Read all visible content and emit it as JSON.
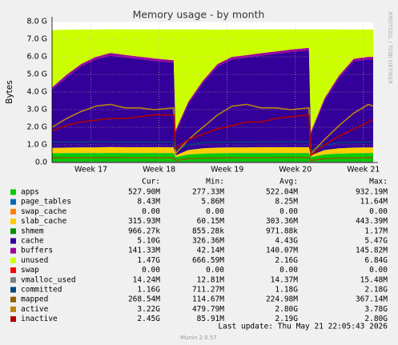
{
  "chart_data": {
    "type": "area",
    "title": "Memory usage - by month",
    "y_label": "Bytes",
    "watermark": "RRDTOOL / TOBI OETIKER",
    "last_update": "Last update: Thu May 21 22:05:43 2026",
    "footer": "Munin 2.0.57",
    "grid": true,
    "x": [
      0,
      1.5,
      3,
      4.5,
      6,
      7.5,
      9,
      10.5,
      12.5,
      12.7,
      14,
      15.5,
      17,
      18.5,
      20,
      21.5,
      23,
      24.5,
      26.4,
      26.6,
      28,
      29.5,
      31,
      32.5,
      33
    ],
    "xlim": [
      0,
      33
    ],
    "xticks": [
      {
        "value": 4,
        "label": "Week 17"
      },
      {
        "value": 11,
        "label": "Week 18"
      },
      {
        "value": 18,
        "label": "Week 19"
      },
      {
        "value": 25,
        "label": "Week 20"
      },
      {
        "value": 32,
        "label": "Week 21"
      }
    ],
    "ylim": [
      0,
      8
    ],
    "yticks": [
      {
        "value": 0,
        "label": "0.0"
      },
      {
        "value": 1,
        "label": "1.0 G"
      },
      {
        "value": 2,
        "label": "2.0 G"
      },
      {
        "value": 3,
        "label": "3.0 G"
      },
      {
        "value": 4,
        "label": "4.0 G"
      },
      {
        "value": 5,
        "label": "5.0 G"
      },
      {
        "value": 6,
        "label": "6.0 G"
      },
      {
        "value": 7,
        "label": "7.0 G"
      },
      {
        "value": 8,
        "label": "8.0 G"
      }
    ],
    "stat_columns": [
      "Cur:",
      "Min:",
      "Avg:",
      "Max:"
    ],
    "series": [
      {
        "name": "apps",
        "color": "#00cc00",
        "kind": "area",
        "stats": [
          "527.90M",
          "277.33M",
          "522.04M",
          "932.19M"
        ],
        "values": [
          0.52,
          0.53,
          0.53,
          0.53,
          0.54,
          0.53,
          0.53,
          0.53,
          0.53,
          0.3,
          0.45,
          0.5,
          0.52,
          0.53,
          0.53,
          0.53,
          0.53,
          0.53,
          0.53,
          0.3,
          0.45,
          0.5,
          0.52,
          0.53,
          0.53
        ]
      },
      {
        "name": "page_tables",
        "color": "#0066b3",
        "kind": "area",
        "stats": [
          "8.43M",
          "5.86M",
          "8.25M",
          "11.64M"
        ],
        "values": [
          0.008,
          0.008,
          0.008,
          0.008,
          0.008,
          0.008,
          0.008,
          0.008,
          0.008,
          0.008,
          0.008,
          0.008,
          0.008,
          0.008,
          0.008,
          0.008,
          0.008,
          0.008,
          0.008,
          0.008,
          0.008,
          0.008,
          0.008,
          0.008,
          0.008
        ]
      },
      {
        "name": "swap_cache",
        "color": "#ff8000",
        "kind": "area",
        "stats": [
          "0.00",
          "0.00",
          "0.00",
          "0.00"
        ],
        "values": [
          0,
          0,
          0,
          0,
          0,
          0,
          0,
          0,
          0,
          0,
          0,
          0,
          0,
          0,
          0,
          0,
          0,
          0,
          0,
          0,
          0,
          0,
          0,
          0,
          0
        ]
      },
      {
        "name": "slab_cache",
        "color": "#ffcc00",
        "kind": "area",
        "stats": [
          "315.93M",
          "60.15M",
          "303.36M",
          "443.39M"
        ],
        "values": [
          0.3,
          0.31,
          0.32,
          0.32,
          0.33,
          0.33,
          0.33,
          0.33,
          0.33,
          0.1,
          0.25,
          0.3,
          0.32,
          0.32,
          0.32,
          0.33,
          0.33,
          0.33,
          0.33,
          0.1,
          0.25,
          0.3,
          0.32,
          0.32,
          0.32
        ]
      },
      {
        "name": "shmem",
        "color": "#008f00",
        "kind": "area",
        "stats": [
          "966.27k",
          "855.28k",
          "971.88k",
          "1.17M"
        ],
        "values": [
          0.001,
          0.001,
          0.001,
          0.001,
          0.001,
          0.001,
          0.001,
          0.001,
          0.001,
          0.001,
          0.001,
          0.001,
          0.001,
          0.001,
          0.001,
          0.001,
          0.001,
          0.001,
          0.001,
          0.001,
          0.001,
          0.001,
          0.001,
          0.001,
          0.001
        ]
      },
      {
        "name": "cache",
        "color": "#330099",
        "kind": "area",
        "stats": [
          "5.10G",
          "326.36M",
          "4.43G",
          "5.47G"
        ],
        "values": [
          3.3,
          4.0,
          4.6,
          5.0,
          5.2,
          5.1,
          5.0,
          4.9,
          4.8,
          1.3,
          2.6,
          3.7,
          4.6,
          5.0,
          5.1,
          5.2,
          5.3,
          5.4,
          5.5,
          1.2,
          2.8,
          4.0,
          4.9,
          5.0,
          5.0
        ]
      },
      {
        "name": "buffers",
        "color": "#990099",
        "kind": "area",
        "stats": [
          "141.33M",
          "42.14M",
          "140.07M",
          "145.82M"
        ],
        "values": [
          0.14,
          0.14,
          0.14,
          0.14,
          0.14,
          0.14,
          0.14,
          0.14,
          0.14,
          0.14,
          0.14,
          0.14,
          0.14,
          0.14,
          0.14,
          0.14,
          0.14,
          0.14,
          0.14,
          0.14,
          0.14,
          0.14,
          0.14,
          0.14,
          0.14
        ]
      },
      {
        "name": "unused",
        "color": "#ccff00",
        "kind": "area",
        "stats": [
          "1.47G",
          "666.59M",
          "2.16G",
          "6.84G"
        ],
        "values": [
          3.25,
          2.55,
          1.95,
          1.55,
          1.35,
          1.45,
          1.55,
          1.65,
          1.75,
          5.71,
          4.11,
          2.91,
          1.95,
          1.55,
          1.45,
          1.35,
          1.25,
          1.15,
          1.05,
          5.81,
          3.91,
          2.61,
          1.65,
          1.55,
          1.55
        ]
      },
      {
        "name": "swap",
        "color": "#ff0000",
        "kind": "area",
        "stats": [
          "0.00",
          "0.00",
          "0.00",
          "0.00"
        ],
        "values": [
          0,
          0,
          0,
          0,
          0,
          0,
          0,
          0,
          0,
          0,
          0,
          0,
          0,
          0,
          0,
          0,
          0,
          0,
          0,
          0,
          0,
          0,
          0,
          0,
          0
        ]
      },
      {
        "name": "vmalloc_used",
        "color": "#808080",
        "kind": "line",
        "stats": [
          "14.24M",
          "12.81M",
          "14.37M",
          "15.48M"
        ],
        "values": [
          0.014,
          0.014,
          0.014,
          0.014,
          0.014,
          0.014,
          0.014,
          0.014,
          0.014,
          0.014,
          0.014,
          0.014,
          0.014,
          0.014,
          0.014,
          0.014,
          0.014,
          0.014,
          0.014,
          0.014,
          0.014,
          0.014,
          0.014,
          0.014,
          0.014
        ]
      },
      {
        "name": "committed",
        "color": "#00487d",
        "kind": "line",
        "stats": [
          "1.16G",
          "711.27M",
          "1.18G",
          "2.18G"
        ],
        "values": [
          1.15,
          1.16,
          1.16,
          1.17,
          1.17,
          1.16,
          1.16,
          1.16,
          1.16,
          0.72,
          1.0,
          1.12,
          1.15,
          1.16,
          1.16,
          1.17,
          1.17,
          1.17,
          1.17,
          0.71,
          1.0,
          1.12,
          1.15,
          1.16,
          1.16
        ]
      },
      {
        "name": "mapped",
        "color": "#8f5f00",
        "kind": "line",
        "stats": [
          "268.54M",
          "114.67M",
          "224.98M",
          "367.14M"
        ],
        "values": [
          0.26,
          0.27,
          0.27,
          0.27,
          0.28,
          0.27,
          0.27,
          0.27,
          0.27,
          0.12,
          0.22,
          0.25,
          0.26,
          0.27,
          0.27,
          0.27,
          0.28,
          0.28,
          0.28,
          0.11,
          0.22,
          0.25,
          0.26,
          0.27,
          0.27
        ]
      },
      {
        "name": "active",
        "color": "#b8860b",
        "kind": "line",
        "stats": [
          "3.22G",
          "479.79M",
          "2.80G",
          "3.78G"
        ],
        "values": [
          2.0,
          2.5,
          2.9,
          3.2,
          3.3,
          3.1,
          3.1,
          3.0,
          3.1,
          0.5,
          1.3,
          2.0,
          2.7,
          3.2,
          3.3,
          3.1,
          3.1,
          3.0,
          3.1,
          0.5,
          1.3,
          2.1,
          2.8,
          3.3,
          3.2
        ]
      },
      {
        "name": "inactive",
        "color": "#b00000",
        "kind": "line",
        "stats": [
          "2.45G",
          "85.91M",
          "2.19G",
          "2.80G"
        ],
        "values": [
          1.8,
          2.1,
          2.3,
          2.4,
          2.5,
          2.5,
          2.6,
          2.7,
          2.7,
          0.8,
          1.3,
          1.6,
          1.9,
          2.1,
          2.3,
          2.3,
          2.5,
          2.6,
          2.7,
          0.4,
          1.0,
          1.5,
          1.9,
          2.3,
          2.45
        ]
      }
    ]
  }
}
